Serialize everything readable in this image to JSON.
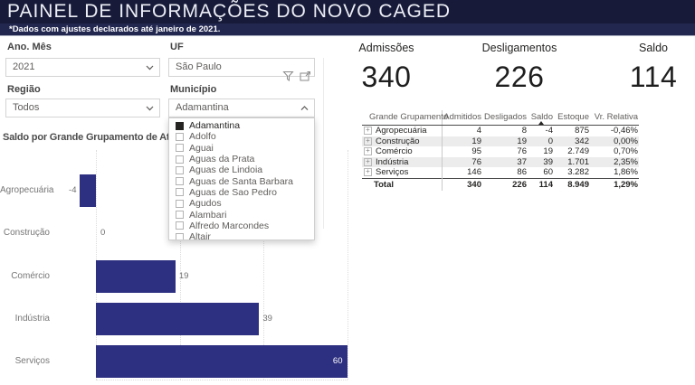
{
  "header": {
    "title": "PAINEL DE INFORMAÇÕES DO NOVO CAGED",
    "subtitle": "*Dados com ajustes declarados até janeiro de 2021."
  },
  "filters": {
    "ano_mes": {
      "label": "Ano. Mês",
      "value": "2021"
    },
    "uf": {
      "label": "UF",
      "value": "São Paulo"
    },
    "regiao": {
      "label": "Região",
      "value": "Todos"
    },
    "municipio": {
      "label": "Município",
      "value": "Adamantina"
    }
  },
  "municipio_dropdown": {
    "items": [
      {
        "label": "Adamantina",
        "checked": true
      },
      {
        "label": "Adolfo",
        "checked": false
      },
      {
        "label": "Aguai",
        "checked": false
      },
      {
        "label": "Aguas da Prata",
        "checked": false
      },
      {
        "label": "Aguas de Lindoia",
        "checked": false
      },
      {
        "label": "Aguas de Santa Barbara",
        "checked": false
      },
      {
        "label": "Aguas de Sao Pedro",
        "checked": false
      },
      {
        "label": "Agudos",
        "checked": false
      },
      {
        "label": "Alambari",
        "checked": false
      },
      {
        "label": "Alfredo Marcondes",
        "checked": false
      },
      {
        "label": "Altair",
        "checked": false
      }
    ]
  },
  "kpis": [
    {
      "label": "Admissões",
      "value": "340"
    },
    {
      "label": "Desligamentos",
      "value": "226"
    },
    {
      "label": "Saldo",
      "value": "114"
    }
  ],
  "table": {
    "columns": [
      "Grande Grupamento",
      "Admitidos",
      "Desligados",
      "Saldo",
      "Estoque",
      "Vr. Relativa"
    ],
    "sort": {
      "column": "Saldo",
      "direction": "asc"
    },
    "rows": [
      [
        "Agropecuária",
        "4",
        "8",
        "-4",
        "875",
        "-0,46%"
      ],
      [
        "Construção",
        "19",
        "19",
        "0",
        "342",
        "0,00%"
      ],
      [
        "Comércio",
        "95",
        "76",
        "19",
        "2.749",
        "0,70%"
      ],
      [
        "Indústria",
        "76",
        "37",
        "39",
        "1.701",
        "2,35%"
      ],
      [
        "Serviços",
        "146",
        "86",
        "60",
        "3.282",
        "1,86%"
      ]
    ],
    "total": [
      "Total",
      "340",
      "226",
      "114",
      "8.949",
      "1,29%"
    ]
  },
  "chart_data": {
    "type": "bar",
    "orientation": "horizontal",
    "title": "Saldo por Grande Grupamento de Ativ",
    "categories": [
      "Agropecuária",
      "Construção",
      "Comércio",
      "Indústria",
      "Serviços"
    ],
    "values": [
      -4,
      0,
      19,
      39,
      60
    ],
    "data_labels": [
      "-4",
      "0",
      "19",
      "39",
      "60"
    ],
    "xlim": [
      -8,
      64
    ],
    "gridline_values": [
      0,
      20,
      40,
      60
    ],
    "grid": "dotted-vertical",
    "legend": "none",
    "bar_color": "#2d2f80"
  },
  "icons": {
    "ano_mes_box": "chevron-down",
    "regiao_box": "chevron-down",
    "municipio_box": "chevron-up",
    "uf_box": [
      "filter-funnel",
      "focus-mode"
    ],
    "table_rows": "expand-plus",
    "sort_indicator": "triangle-up"
  },
  "colors": {
    "header_bg": "#171a38",
    "subtitle_bg": "#222750",
    "bar": "#2d2f80",
    "kpi_text": "#1e1e1e",
    "table_stripe": "#ececec",
    "muted_text": "#605e5c"
  }
}
